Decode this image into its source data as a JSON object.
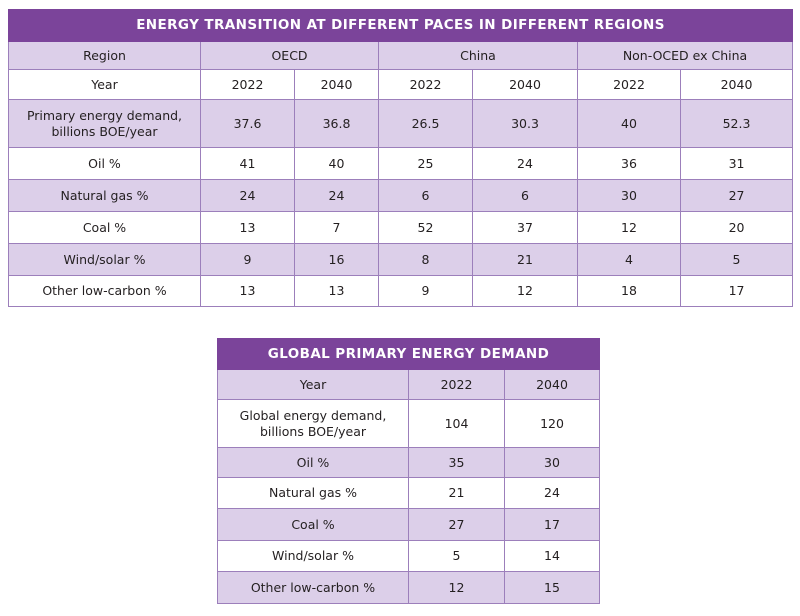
{
  "regional": {
    "title": "ENERGY TRANSITION AT DIFFERENT PACES IN DIFFERENT REGIONS",
    "region_label": "Region",
    "regions": [
      "OECD",
      "China",
      "Non-OCED ex China"
    ],
    "year_label": "Year",
    "years": [
      "2022",
      "2040",
      "2022",
      "2040",
      "2022",
      "2040"
    ],
    "rows": [
      {
        "label": "Primary energy demand, billions BOE/year",
        "values": [
          "37.6",
          "36.8",
          "26.5",
          "30.3",
          "40",
          "52.3"
        ]
      },
      {
        "label": "Oil %",
        "values": [
          "41",
          "40",
          "25",
          "24",
          "36",
          "31"
        ]
      },
      {
        "label": "Natural gas %",
        "values": [
          "24",
          "24",
          "6",
          "6",
          "30",
          "27"
        ]
      },
      {
        "label": "Coal %",
        "values": [
          "13",
          "7",
          "52",
          "37",
          "12",
          "20"
        ]
      },
      {
        "label": "Wind/solar %",
        "values": [
          "9",
          "16",
          "8",
          "21",
          "4",
          "5"
        ]
      },
      {
        "label": "Other low-carbon %",
        "values": [
          "13",
          "13",
          "9",
          "12",
          "18",
          "17"
        ]
      }
    ]
  },
  "global": {
    "title": "GLOBAL PRIMARY ENERGY DEMAND",
    "year_label": "Year",
    "years": [
      "2022",
      "2040"
    ],
    "rows": [
      {
        "label": "Global energy demand, billions BOE/year",
        "values": [
          "104",
          "120"
        ]
      },
      {
        "label": "Oil %",
        "values": [
          "35",
          "30"
        ]
      },
      {
        "label": "Natural gas %",
        "values": [
          "21",
          "24"
        ]
      },
      {
        "label": "Coal %",
        "values": [
          "27",
          "17"
        ]
      },
      {
        "label": "Wind/solar %",
        "values": [
          "5",
          "14"
        ]
      },
      {
        "label": "Other low-carbon %",
        "values": [
          "12",
          "15"
        ]
      }
    ]
  },
  "colors": {
    "header": "#7b449a",
    "shaded_row": "#dccfe9",
    "border": "#9c7fbb"
  }
}
